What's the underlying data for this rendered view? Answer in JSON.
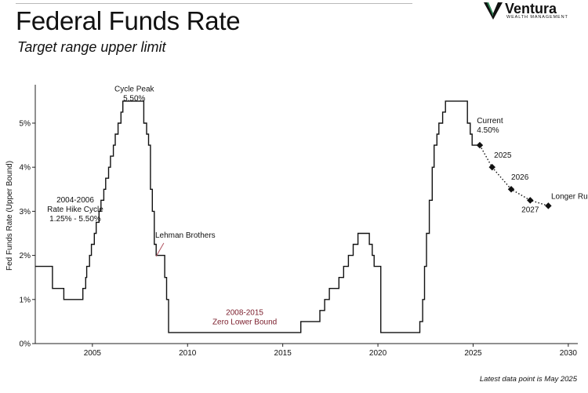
{
  "header": {
    "title": "Federal Funds Rate",
    "subtitle": "Target range upper limit"
  },
  "brand": {
    "name": "Ventura",
    "tagline": "WEALTH MANAGEMENT"
  },
  "footnote": "Latest data point is May 2025",
  "colors": {
    "line": "#111111",
    "annotation_accent": "#7a1c2a",
    "pointer": "#b0525f",
    "axis": "#222222"
  },
  "chart_data": {
    "type": "line",
    "title": "Federal Funds Rate",
    "subtitle": "Target range upper limit",
    "ylabel": "Fed Funds Rate (Upper Bound)",
    "xlabel": "",
    "xlim": [
      2002.0,
      2030.5
    ],
    "ylim": [
      0,
      5.8
    ],
    "x_ticks": [
      2005,
      2010,
      2015,
      2020,
      2025,
      2030
    ],
    "x_tick_labels": [
      "2005",
      "2010",
      "2015",
      "2020",
      "2025",
      "2030"
    ],
    "y_ticks": [
      0,
      1,
      2,
      3,
      4,
      5
    ],
    "y_tick_labels": [
      "0%",
      "1%",
      "2%",
      "3%",
      "4%",
      "5%"
    ],
    "grid": false,
    "series": [
      {
        "style": "step",
        "points": [
          [
            2002.0,
            1.75
          ],
          [
            2002.9,
            1.75
          ],
          [
            2002.9,
            1.25
          ],
          [
            2003.5,
            1.25
          ],
          [
            2003.5,
            1.0
          ],
          [
            2004.5,
            1.0
          ],
          [
            2004.5,
            1.25
          ],
          [
            2004.65,
            1.25
          ],
          [
            2004.65,
            1.5
          ],
          [
            2004.7,
            1.5
          ],
          [
            2004.7,
            1.75
          ],
          [
            2004.85,
            1.75
          ],
          [
            2004.85,
            2.0
          ],
          [
            2004.95,
            2.0
          ],
          [
            2004.95,
            2.25
          ],
          [
            2005.1,
            2.25
          ],
          [
            2005.1,
            2.5
          ],
          [
            2005.2,
            2.5
          ],
          [
            2005.2,
            2.75
          ],
          [
            2005.35,
            2.75
          ],
          [
            2005.35,
            3.0
          ],
          [
            2005.45,
            3.0
          ],
          [
            2005.45,
            3.25
          ],
          [
            2005.6,
            3.25
          ],
          [
            2005.6,
            3.5
          ],
          [
            2005.7,
            3.5
          ],
          [
            2005.7,
            3.75
          ],
          [
            2005.85,
            3.75
          ],
          [
            2005.85,
            4.0
          ],
          [
            2005.95,
            4.0
          ],
          [
            2005.95,
            4.25
          ],
          [
            2006.1,
            4.25
          ],
          [
            2006.1,
            4.5
          ],
          [
            2006.2,
            4.5
          ],
          [
            2006.2,
            4.75
          ],
          [
            2006.35,
            4.75
          ],
          [
            2006.35,
            5.0
          ],
          [
            2006.5,
            5.0
          ],
          [
            2006.5,
            5.25
          ],
          [
            2006.6,
            5.25
          ],
          [
            2006.6,
            5.5
          ],
          [
            2007.7,
            5.5
          ],
          [
            2007.7,
            5.0
          ],
          [
            2007.85,
            5.0
          ],
          [
            2007.85,
            4.75
          ],
          [
            2007.95,
            4.75
          ],
          [
            2007.95,
            4.5
          ],
          [
            2008.05,
            4.5
          ],
          [
            2008.05,
            3.5
          ],
          [
            2008.15,
            3.5
          ],
          [
            2008.15,
            3.0
          ],
          [
            2008.25,
            3.0
          ],
          [
            2008.25,
            2.25
          ],
          [
            2008.35,
            2.25
          ],
          [
            2008.35,
            2.0
          ],
          [
            2008.8,
            2.0
          ],
          [
            2008.8,
            1.5
          ],
          [
            2008.9,
            1.5
          ],
          [
            2008.9,
            1.0
          ],
          [
            2009.0,
            1.0
          ],
          [
            2009.0,
            0.25
          ],
          [
            2015.95,
            0.25
          ],
          [
            2015.95,
            0.5
          ],
          [
            2016.95,
            0.5
          ],
          [
            2016.95,
            0.75
          ],
          [
            2017.2,
            0.75
          ],
          [
            2017.2,
            1.0
          ],
          [
            2017.45,
            1.0
          ],
          [
            2017.45,
            1.25
          ],
          [
            2017.95,
            1.25
          ],
          [
            2017.95,
            1.5
          ],
          [
            2018.2,
            1.5
          ],
          [
            2018.2,
            1.75
          ],
          [
            2018.45,
            1.75
          ],
          [
            2018.45,
            2.0
          ],
          [
            2018.7,
            2.0
          ],
          [
            2018.7,
            2.25
          ],
          [
            2018.95,
            2.25
          ],
          [
            2018.95,
            2.5
          ],
          [
            2019.55,
            2.5
          ],
          [
            2019.55,
            2.25
          ],
          [
            2019.7,
            2.25
          ],
          [
            2019.7,
            2.0
          ],
          [
            2019.8,
            2.0
          ],
          [
            2019.8,
            1.75
          ],
          [
            2020.15,
            1.75
          ],
          [
            2020.15,
            0.25
          ],
          [
            2022.2,
            0.25
          ],
          [
            2022.2,
            0.5
          ],
          [
            2022.35,
            0.5
          ],
          [
            2022.35,
            1.0
          ],
          [
            2022.45,
            1.0
          ],
          [
            2022.45,
            1.75
          ],
          [
            2022.55,
            1.75
          ],
          [
            2022.55,
            2.5
          ],
          [
            2022.7,
            2.5
          ],
          [
            2022.7,
            3.25
          ],
          [
            2022.85,
            3.25
          ],
          [
            2022.85,
            4.0
          ],
          [
            2022.95,
            4.0
          ],
          [
            2022.95,
            4.5
          ],
          [
            2023.1,
            4.5
          ],
          [
            2023.1,
            4.75
          ],
          [
            2023.2,
            4.75
          ],
          [
            2023.2,
            5.0
          ],
          [
            2023.4,
            5.0
          ],
          [
            2023.4,
            5.25
          ],
          [
            2023.55,
            5.25
          ],
          [
            2023.55,
            5.5
          ],
          [
            2024.7,
            5.5
          ],
          [
            2024.7,
            5.0
          ],
          [
            2024.85,
            5.0
          ],
          [
            2024.85,
            4.75
          ],
          [
            2024.95,
            4.75
          ],
          [
            2024.95,
            4.5
          ],
          [
            2025.35,
            4.5
          ]
        ]
      },
      {
        "style": "dotted",
        "points": [
          [
            2025.35,
            4.5
          ],
          [
            2026.0,
            4.0
          ],
          [
            2027.0,
            3.5
          ],
          [
            2028.0,
            3.25
          ],
          [
            2028.95,
            3.125
          ]
        ]
      }
    ],
    "annotations": [
      {
        "lines": [
          "Cycle Peak",
          "5.50%"
        ],
        "x": 2007.2,
        "y": 5.72,
        "anchor": "middle"
      },
      {
        "lines": [
          "2004-2006",
          "Rate Hike Cycle",
          "1.25% - 5.50%"
        ],
        "x": 2004.1,
        "y": 3.2,
        "anchor": "middle"
      },
      {
        "lines": [
          "Lehman Brothers"
        ],
        "x": 2008.3,
        "y": 2.4,
        "anchor": "start"
      },
      {
        "lines": [
          "2008-2015",
          "Zero Lower Bound"
        ],
        "x": 2013.0,
        "y": 0.65,
        "anchor": "middle",
        "accent": true
      },
      {
        "lines": [
          "Current",
          "4.50%"
        ],
        "x": 2025.2,
        "y": 5.0,
        "anchor": "start"
      },
      {
        "lines": [
          "2025"
        ],
        "x": 2026.1,
        "y": 4.22,
        "anchor": "start"
      },
      {
        "lines": [
          "2026"
        ],
        "x": 2027.0,
        "y": 3.72,
        "anchor": "start"
      },
      {
        "lines": [
          "2027"
        ],
        "x": 2028.0,
        "y": 2.98,
        "anchor": "middle"
      },
      {
        "lines": [
          "Longer Run"
        ],
        "x": 2029.1,
        "y": 3.28,
        "anchor": "start"
      }
    ]
  }
}
